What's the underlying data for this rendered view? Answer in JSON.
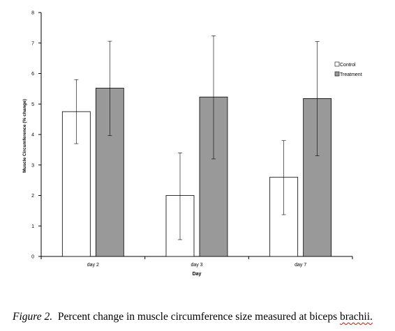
{
  "chart_data": {
    "type": "bar",
    "title": "",
    "xlabel": "Day",
    "ylabel": "Muscle Circumference (% change)",
    "ylim": [
      0,
      8
    ],
    "yticks": [
      "0",
      "1",
      "2",
      "3",
      "4",
      "5",
      "6",
      "7",
      "8"
    ],
    "categories": [
      "day 2",
      "day 3",
      "day 7"
    ],
    "series": [
      {
        "name": "Control",
        "color": "#ffffff",
        "values": [
          4.75,
          2.0,
          2.6
        ],
        "error_upper": [
          5.8,
          3.4,
          3.8
        ],
        "error_lower": [
          3.7,
          0.55,
          1.37
        ]
      },
      {
        "name": "Treatment",
        "color": "#999999",
        "values": [
          5.52,
          5.23,
          5.18
        ],
        "error_upper": [
          7.06,
          7.24,
          7.05
        ],
        "error_lower": [
          3.96,
          3.2,
          3.3
        ]
      }
    ],
    "legend_position": "top-right",
    "grid": false
  },
  "caption": {
    "figure_label": "Figure 2.",
    "text_main": "Percent change in muscle circumference size measured at biceps",
    "text_last": "brachii."
  }
}
